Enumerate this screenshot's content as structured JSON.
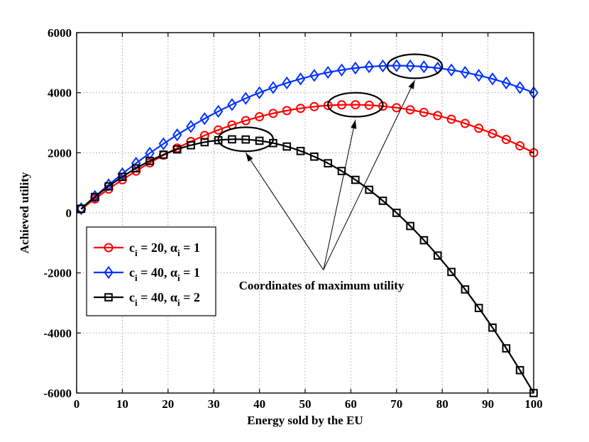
{
  "chart_data": {
    "type": "line",
    "title": "",
    "xlabel": "Energy sold by the EU",
    "ylabel": "Achieved utility",
    "xlim": [
      0,
      100
    ],
    "ylim": [
      -6000,
      6000
    ],
    "xticks": [
      0,
      10,
      20,
      30,
      40,
      50,
      60,
      70,
      80,
      90,
      100
    ],
    "yticks": [
      -6000,
      -4000,
      -2000,
      0,
      2000,
      4000,
      6000
    ],
    "grid": true,
    "legend_position": "left-middle",
    "series": [
      {
        "name": "c_i = 20, α_i = 1",
        "label_parts": {
          "c": "c",
          "c_sub": "i",
          "c_val": " = 20, ",
          "alpha": "α",
          "alpha_sub": "i",
          "alpha_val": " = 1"
        },
        "color": "#ff0000",
        "marker": "circle",
        "formula": {
          "a": 120,
          "b": 1
        },
        "x": [
          1,
          4,
          7,
          10,
          13,
          16,
          19,
          22,
          25,
          28,
          31,
          34,
          37,
          40,
          43,
          46,
          49,
          52,
          55,
          58,
          61,
          64,
          67,
          70,
          73,
          76,
          79,
          82,
          85,
          88,
          91,
          94,
          97,
          100
        ]
      },
      {
        "name": "c_i = 40, α_i = 1",
        "label_parts": {
          "c": "c",
          "c_sub": "i",
          "c_val": " = 40, ",
          "alpha": "α",
          "alpha_sub": "i",
          "alpha_val": " = 1"
        },
        "color": "#0033ff",
        "marker": "diamond",
        "formula": {
          "a": 140,
          "b": 1
        },
        "x": [
          1,
          4,
          7,
          10,
          13,
          16,
          19,
          22,
          25,
          28,
          31,
          34,
          37,
          40,
          43,
          46,
          49,
          52,
          55,
          58,
          61,
          64,
          67,
          70,
          73,
          76,
          79,
          82,
          85,
          88,
          91,
          94,
          97,
          100
        ]
      },
      {
        "name": "c_i = 40, α_i = 2",
        "label_parts": {
          "c": "c",
          "c_sub": "i",
          "c_val": " = 40, ",
          "alpha": "α",
          "alpha_sub": "i",
          "alpha_val": " = 2"
        },
        "color": "#000000",
        "marker": "square",
        "formula": {
          "a": 140,
          "b": 2
        },
        "x": [
          1,
          4,
          7,
          10,
          13,
          16,
          19,
          22,
          25,
          28,
          31,
          34,
          37,
          40,
          43,
          46,
          49,
          52,
          55,
          58,
          61,
          64,
          67,
          70,
          73,
          76,
          79,
          82,
          85,
          88,
          91,
          94,
          97,
          100
        ]
      }
    ],
    "annotation": {
      "text": "Coordinates of maximum utility",
      "anchor": [
        54,
        -1900
      ],
      "targets": [
        {
          "x": 37,
          "y": 2450,
          "rx": 6,
          "ry": 400,
          "arrow_to": [
            37,
            2000
          ]
        },
        {
          "x": 61,
          "y": 3600,
          "rx": 6,
          "ry": 400,
          "arrow_to": [
            61,
            3100
          ]
        },
        {
          "x": 74,
          "y": 4880,
          "rx": 6,
          "ry": 400,
          "arrow_to": [
            74,
            4420
          ]
        }
      ]
    }
  }
}
